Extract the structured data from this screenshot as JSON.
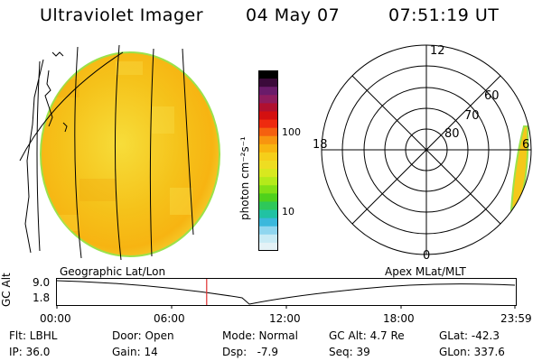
{
  "header": {
    "instrument": "Ultraviolet Imager",
    "date": "04 May 07",
    "time": "07:51:19 UT"
  },
  "colorbar": {
    "unit_label": "photon cm⁻²s⁻¹",
    "ticks": [
      "100",
      "10"
    ],
    "colors": [
      "#000000",
      "#3b0a3a",
      "#6a1b6a",
      "#8e1c5e",
      "#b01030",
      "#d41010",
      "#ee2a0f",
      "#f5600f",
      "#f8940f",
      "#f8b510",
      "#f5cf1a",
      "#eedd22",
      "#d8e81f",
      "#b4ea1a",
      "#82e016",
      "#4fd11c",
      "#2ec85a",
      "#21c2a3",
      "#3ab8dc",
      "#8fd6ef",
      "#c8ebf5",
      "#e4f2f6"
    ]
  },
  "polar_plot": {
    "mlt_labels": [
      "12",
      "18",
      "6",
      "0"
    ],
    "lat_labels": [
      "60",
      "70",
      "80"
    ]
  },
  "timeline": {
    "left_title": "Geographic Lat/Lon",
    "right_title": "Apex MLat/MLT",
    "y_axis_label": "GC Alt",
    "y_ticks": [
      "9.0",
      "1.8"
    ],
    "x_ticks": [
      "00:00",
      "06:00",
      "12:00",
      "18:00",
      "23:59"
    ],
    "current_time_fraction": 0.327
  },
  "info": {
    "filter": "Flt: LBHL",
    "ip": "IP: 36.0",
    "door": "Door: Open",
    "gain": "Gain: 14",
    "mode": "Mode: Normal",
    "dsp": "Dsp:   -7.9",
    "gc_alt": "GC Alt: 4.7 Re",
    "seq": "Seq: 39",
    "glat": "GLat: -42.3",
    "glon": "GLon: 337.6"
  },
  "colors": {
    "disk_fill": "#f5c81a",
    "disk_edge": "#9be24a",
    "marker": "#e03030"
  }
}
